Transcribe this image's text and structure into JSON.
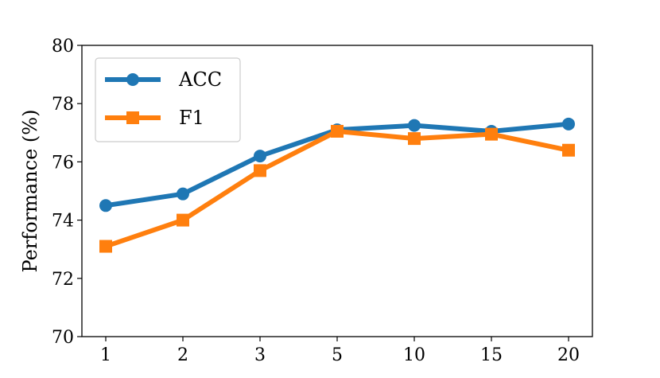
{
  "chart_data": {
    "type": "line",
    "x": [
      "1",
      "2",
      "3",
      "5",
      "10",
      "15",
      "20"
    ],
    "ylabel": "Performance (%)",
    "ylim": [
      70,
      80
    ],
    "yticks": [
      "70",
      "72",
      "74",
      "76",
      "78",
      "80"
    ],
    "grid": false,
    "legend_position": "top-left",
    "series": [
      {
        "name": "ACC",
        "color": "#1f77b4",
        "marker": "circle",
        "values": [
          74.5,
          74.9,
          76.2,
          77.1,
          77.25,
          77.05,
          77.3
        ]
      },
      {
        "name": "F1",
        "color": "#ff7f0e",
        "marker": "square",
        "values": [
          73.1,
          74.0,
          75.7,
          77.05,
          76.8,
          76.95,
          76.4
        ]
      }
    ]
  }
}
